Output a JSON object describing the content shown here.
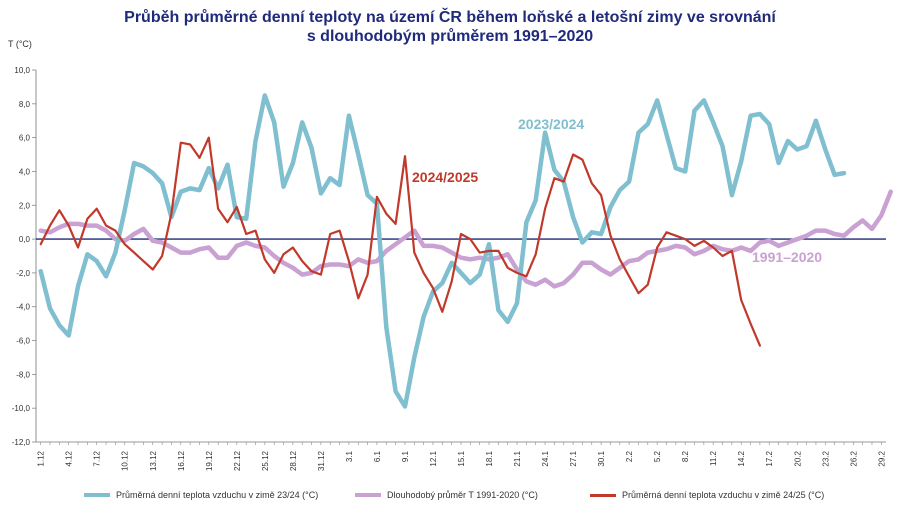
{
  "chart_data": {
    "type": "line",
    "title": [
      "Průběh průměrné denní teploty na území ČR během loňské a letošní zimy ve srovnání",
      "s dlouhodobým průměrem 1991–2020"
    ],
    "ylabel": "T (°C)",
    "ylim": [
      -12,
      10
    ],
    "y_ticks": [
      "10,0",
      "8,0",
      "6,0",
      "4,0",
      "2,0",
      "0,0",
      "-2,0",
      "-4,0",
      "-6,0",
      "-8,0",
      "-10,0",
      "-12,0"
    ],
    "x_tick_labels": [
      "1.12",
      "4.12",
      "7.12",
      "10.12",
      "13.12",
      "16.12",
      "19.12",
      "22.12",
      "25.12",
      "28.12",
      "31.12",
      "3.1",
      "6.1",
      "9.1",
      "12.1",
      "15.1",
      "18.1",
      "21.1",
      "24.1",
      "27.1",
      "30.1",
      "2.2",
      "5.2",
      "8.2",
      "11.2",
      "14.2",
      "17.2",
      "20.2",
      "23.2",
      "26.2",
      "29.2"
    ],
    "day_count": 91,
    "series": [
      {
        "name": "Průměrná denní teplota vzduchu v zimě 23/24 (°C)",
        "label": "2023/2024",
        "color": "#7fbfcf",
        "width": 4.5,
        "values": [
          -1.9,
          -4.1,
          -5.1,
          -5.7,
          -2.8,
          -0.9,
          -1.3,
          -2.2,
          -0.8,
          1.7,
          4.5,
          4.3,
          3.9,
          3.3,
          1.3,
          2.8,
          3.0,
          2.9,
          4.2,
          3.0,
          4.4,
          1.3,
          1.2,
          5.8,
          8.5,
          6.9,
          3.1,
          4.5,
          6.9,
          5.4,
          2.7,
          3.6,
          3.2,
          7.3,
          5.0,
          2.6,
          2.1,
          -5.2,
          -9.0,
          -9.9,
          -7.0,
          -4.6,
          -3.1,
          -2.6,
          -1.4,
          -2.0,
          -2.6,
          -2.1,
          -0.3,
          -4.2,
          -4.9,
          -3.8,
          1.0,
          2.3,
          6.3,
          4.1,
          3.4,
          1.3,
          -0.2,
          0.4,
          0.3,
          1.9,
          2.9,
          3.4,
          6.3,
          6.8,
          8.2,
          6.2,
          4.2,
          4.0,
          7.6,
          8.2,
          6.9,
          5.5,
          2.6,
          4.6,
          7.3,
          7.4,
          6.8,
          4.5,
          5.8,
          5.3,
          5.5,
          7.0,
          5.3,
          3.8,
          3.9,
          null,
          null,
          null,
          null
        ]
      },
      {
        "name": "Dlouhodobý průměr T 1991-2020 (°C)",
        "label": "1991–2020",
        "color": "#c9a1d3",
        "width": 4.5,
        "values": [
          0.5,
          0.4,
          0.7,
          0.9,
          0.9,
          0.8,
          0.8,
          0.5,
          0.0,
          -0.1,
          0.3,
          0.6,
          -0.1,
          -0.2,
          -0.5,
          -0.8,
          -0.8,
          -0.6,
          -0.5,
          -1.1,
          -1.1,
          -0.4,
          -0.2,
          -0.4,
          -0.5,
          -1.0,
          -1.4,
          -1.7,
          -2.1,
          -2.0,
          -1.6,
          -1.5,
          -1.5,
          -1.6,
          -1.2,
          -1.4,
          -1.3,
          -0.7,
          -0.3,
          0.1,
          0.5,
          -0.4,
          -0.4,
          -0.5,
          -0.8,
          -1.1,
          -1.2,
          -1.1,
          -1.2,
          -1.1,
          -0.9,
          -1.8,
          -2.5,
          -2.7,
          -2.4,
          -2.8,
          -2.6,
          -2.1,
          -1.4,
          -1.4,
          -1.8,
          -2.1,
          -1.7,
          -1.3,
          -1.2,
          -0.8,
          -0.7,
          -0.6,
          -0.4,
          -0.5,
          -0.9,
          -0.7,
          -0.4,
          -0.6,
          -0.7,
          -0.5,
          -0.7,
          -0.2,
          -0.1,
          -0.4,
          -0.2,
          0.0,
          0.2,
          0.5,
          0.5,
          0.3,
          0.2,
          0.7,
          1.1,
          0.6,
          1.4,
          2.8
        ]
      },
      {
        "name": "Průměrná denní teplota vzduchu v zimě 24/25 (°C)",
        "label": "2024/2025",
        "color": "#c0392b",
        "width": 2.2,
        "values": [
          -0.3,
          0.8,
          1.7,
          0.8,
          -0.5,
          1.2,
          1.8,
          0.8,
          0.5,
          -0.3,
          -0.8,
          -1.3,
          -1.8,
          -1.0,
          1.5,
          5.7,
          5.6,
          4.8,
          6.0,
          1.8,
          1.0,
          1.9,
          0.3,
          0.5,
          -1.2,
          -2.0,
          -0.9,
          -0.5,
          -1.3,
          -1.9,
          -2.1,
          0.3,
          0.5,
          -1.3,
          -3.5,
          -2.1,
          2.5,
          1.5,
          0.9,
          4.9,
          -0.8,
          -2.0,
          -2.9,
          -4.3,
          -2.5,
          0.3,
          0.0,
          -0.8,
          -0.7,
          -0.7,
          -1.7,
          -2.0,
          -2.2,
          -0.9,
          1.8,
          3.6,
          3.4,
          5.0,
          4.7,
          3.3,
          2.6,
          0.2,
          -1.2,
          -2.2,
          -3.2,
          -2.7,
          -0.5,
          0.4,
          0.2,
          0.0,
          -0.4,
          -0.1,
          -0.5,
          -1.0,
          -0.7,
          -3.6,
          -5.0,
          -6.3,
          null,
          null,
          null,
          null,
          null,
          null,
          null,
          null,
          null,
          null,
          null,
          null,
          null
        ]
      }
    ]
  }
}
